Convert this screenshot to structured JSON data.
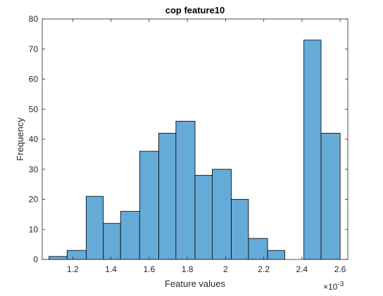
{
  "chart_data": {
    "type": "bar",
    "title": "cop feature10",
    "xlabel": "Feature values",
    "ylabel": "Frequency",
    "x_exponent_base": "×10",
    "x_exponent_power": "-3",
    "xlim": [
      1.04,
      2.64
    ],
    "ylim": [
      0,
      80
    ],
    "x_ticks": [
      1.2,
      1.4,
      1.6,
      1.8,
      2.0,
      2.2,
      2.4,
      2.6
    ],
    "x_tick_labels": [
      "1.2",
      "1.4",
      "1.6",
      "1.8",
      "2",
      "2.2",
      "2.4",
      "2.6"
    ],
    "y_ticks": [
      0,
      10,
      20,
      30,
      40,
      50,
      60,
      70,
      80
    ],
    "y_tick_labels": [
      "0",
      "10",
      "20",
      "30",
      "40",
      "50",
      "60",
      "70",
      "80"
    ],
    "bin_edges": [
      1.075,
      1.17,
      1.27,
      1.36,
      1.45,
      1.55,
      1.65,
      1.74,
      1.84,
      1.93,
      2.03,
      2.12,
      2.22,
      2.31,
      2.41,
      2.5,
      2.6
    ],
    "values": [
      1,
      3,
      21,
      12,
      16,
      36,
      42,
      46,
      28,
      30,
      20,
      7,
      3,
      0,
      73,
      42
    ],
    "bar_color": "#66aad7",
    "edge_color": "#000000",
    "grid": false,
    "box": true
  }
}
